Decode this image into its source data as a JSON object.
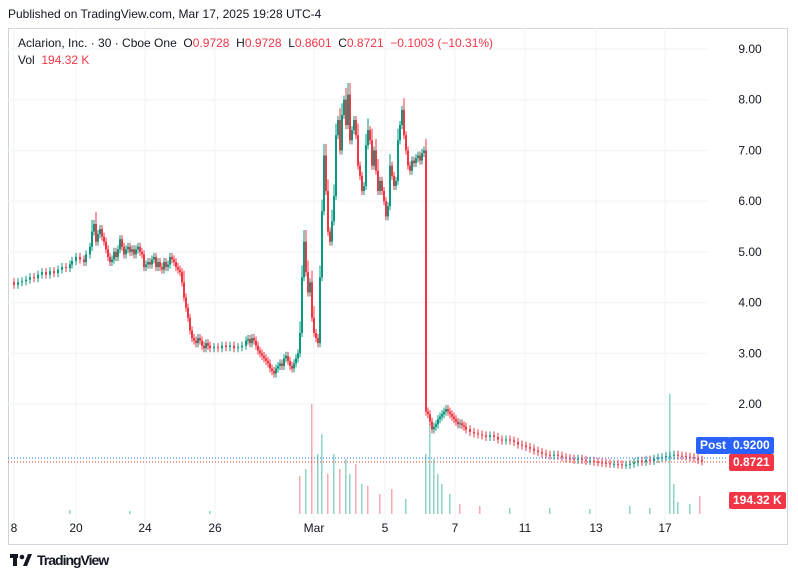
{
  "published": "Published on TradingView.com, Mar 17, 2025 19:28 UTC-4",
  "legend": {
    "name": "Aclarion, Inc. · 30 · Cboe One",
    "o_label": "O",
    "o": "0.9728",
    "h_label": "H",
    "h": "0.9728",
    "l_label": "L",
    "l": "0.8601",
    "c_label": "C",
    "c": "0.8721",
    "change": "−0.1003 (−10.31%)",
    "vol_label": "Vol",
    "vol": "194.32 K"
  },
  "tags": {
    "post_label": "Post",
    "post_price": "0.9200",
    "last_price": "0.8721",
    "volume": "194.32 K"
  },
  "colors": {
    "up": "#089981",
    "down": "#f23645",
    "post": "#2962ff",
    "text": "#131722",
    "grid": "#f0f3fa"
  },
  "footer": {
    "brand": "TradingView",
    "logo_icon": "tradingview-logo-icon"
  },
  "chart_data": {
    "type": "candlestick",
    "y_ticks": [
      "9.00",
      "8.00",
      "7.00",
      "6.00",
      "5.00",
      "4.00",
      "3.00",
      "2.00"
    ],
    "ylim": [
      0.0,
      9.4
    ],
    "x_ticks": [
      "8",
      "20",
      "24",
      "26",
      "Mar",
      "5",
      "7",
      "11",
      "13",
      "17"
    ],
    "grid": true,
    "series_name": "Aclarion, Inc.",
    "price_path": [
      [
        0,
        4.4
      ],
      [
        4,
        4.35
      ],
      [
        8,
        4.4
      ],
      [
        12,
        4.42
      ],
      [
        16,
        4.45
      ],
      [
        20,
        4.5
      ],
      [
        24,
        4.48
      ],
      [
        28,
        4.55
      ],
      [
        32,
        4.6
      ],
      [
        36,
        4.55
      ],
      [
        40,
        4.62
      ],
      [
        44,
        4.58
      ],
      [
        48,
        4.65
      ],
      [
        52,
        4.7
      ],
      [
        56,
        4.68
      ],
      [
        60,
        4.75
      ],
      [
        62,
        4.82
      ],
      [
        66,
        4.9
      ],
      [
        70,
        4.85
      ],
      [
        74,
        4.8
      ],
      [
        76,
        4.95
      ],
      [
        80,
        5.1
      ],
      [
        82,
        5.4
      ],
      [
        84,
        5.55
      ],
      [
        86,
        5.2
      ],
      [
        88,
        5.35
      ],
      [
        90,
        5.45
      ],
      [
        92,
        5.3
      ],
      [
        94,
        5.2
      ],
      [
        96,
        5.05
      ],
      [
        98,
        4.9
      ],
      [
        100,
        4.8
      ],
      [
        102,
        4.85
      ],
      [
        104,
        5.0
      ],
      [
        106,
        4.9
      ],
      [
        108,
        5.05
      ],
      [
        110,
        5.25
      ],
      [
        112,
        5.1
      ],
      [
        114,
        4.95
      ],
      [
        116,
        5.05
      ],
      [
        118,
        5.1
      ],
      [
        120,
        5.0
      ],
      [
        122,
        5.05
      ],
      [
        124,
        4.95
      ],
      [
        126,
        5.05
      ],
      [
        128,
        5.1
      ],
      [
        130,
        5.0
      ],
      [
        132,
        4.95
      ],
      [
        134,
        4.7
      ],
      [
        136,
        4.75
      ],
      [
        138,
        4.8
      ],
      [
        140,
        4.75
      ],
      [
        142,
        4.85
      ],
      [
        144,
        4.9
      ],
      [
        146,
        4.7
      ],
      [
        148,
        4.8
      ],
      [
        150,
        4.7
      ],
      [
        152,
        4.65
      ],
      [
        154,
        4.8
      ],
      [
        156,
        4.7
      ],
      [
        158,
        4.75
      ],
      [
        160,
        4.9
      ],
      [
        162,
        4.85
      ],
      [
        164,
        4.8
      ],
      [
        166,
        4.7
      ],
      [
        168,
        4.65
      ],
      [
        170,
        4.6
      ],
      [
        172,
        4.4
      ],
      [
        174,
        4.1
      ],
      [
        176,
        3.9
      ],
      [
        178,
        3.7
      ],
      [
        180,
        3.45
      ],
      [
        182,
        3.3
      ],
      [
        184,
        3.25
      ],
      [
        186,
        3.2
      ],
      [
        188,
        3.3
      ],
      [
        190,
        3.25
      ],
      [
        192,
        3.15
      ],
      [
        194,
        3.1
      ],
      [
        196,
        3.2
      ],
      [
        198,
        3.15
      ],
      [
        200,
        3.1
      ],
      [
        204,
        3.12
      ],
      [
        208,
        3.1
      ],
      [
        212,
        3.15
      ],
      [
        216,
        3.12
      ],
      [
        220,
        3.15
      ],
      [
        224,
        3.1
      ],
      [
        228,
        3.12
      ],
      [
        232,
        3.15
      ],
      [
        236,
        3.25
      ],
      [
        238,
        3.28
      ],
      [
        240,
        3.2
      ],
      [
        242,
        3.3
      ],
      [
        244,
        3.25
      ],
      [
        246,
        3.15
      ],
      [
        248,
        3.05
      ],
      [
        250,
        3.0
      ],
      [
        252,
        2.95
      ],
      [
        254,
        2.9
      ],
      [
        256,
        2.85
      ],
      [
        258,
        2.8
      ],
      [
        260,
        2.7
      ],
      [
        262,
        2.65
      ],
      [
        264,
        2.6
      ],
      [
        266,
        2.7
      ],
      [
        268,
        2.75
      ],
      [
        270,
        2.8
      ],
      [
        272,
        2.75
      ],
      [
        274,
        2.9
      ],
      [
        276,
        2.95
      ],
      [
        278,
        2.85
      ],
      [
        280,
        2.75
      ],
      [
        282,
        2.7
      ],
      [
        284,
        2.8
      ],
      [
        286,
        2.9
      ],
      [
        288,
        3.0
      ],
      [
        290,
        3.4
      ],
      [
        292,
        4.5
      ],
      [
        294,
        5.2
      ],
      [
        296,
        4.6
      ],
      [
        298,
        4.2
      ],
      [
        300,
        4.4
      ],
      [
        302,
        3.7
      ],
      [
        304,
        3.4
      ],
      [
        306,
        3.3
      ],
      [
        308,
        3.2
      ],
      [
        310,
        4.5
      ],
      [
        312,
        5.8
      ],
      [
        314,
        6.9
      ],
      [
        316,
        6.2
      ],
      [
        318,
        5.4
      ],
      [
        320,
        5.2
      ],
      [
        322,
        5.6
      ],
      [
        324,
        6.1
      ],
      [
        326,
        7.3
      ],
      [
        328,
        7.6
      ],
      [
        330,
        7.0
      ],
      [
        332,
        7.7
      ],
      [
        334,
        8.0
      ],
      [
        336,
        7.5
      ],
      [
        338,
        8.1
      ],
      [
        340,
        7.2
      ],
      [
        342,
        7.4
      ],
      [
        344,
        7.6
      ],
      [
        346,
        7.3
      ],
      [
        348,
        6.7
      ],
      [
        350,
        6.5
      ],
      [
        352,
        6.2
      ],
      [
        354,
        6.3
      ],
      [
        356,
        7.1
      ],
      [
        358,
        7.4
      ],
      [
        360,
        7.2
      ],
      [
        362,
        6.7
      ],
      [
        364,
        7.0
      ],
      [
        366,
        6.6
      ],
      [
        368,
        6.2
      ],
      [
        370,
        6.4
      ],
      [
        372,
        6.2
      ],
      [
        374,
        6.0
      ],
      [
        376,
        5.7
      ],
      [
        378,
        5.9
      ],
      [
        380,
        6.7
      ],
      [
        382,
        6.5
      ],
      [
        384,
        6.3
      ],
      [
        386,
        6.4
      ],
      [
        388,
        7.2
      ],
      [
        390,
        7.5
      ],
      [
        392,
        7.8
      ],
      [
        394,
        7.3
      ],
      [
        396,
        7.0
      ],
      [
        398,
        6.7
      ],
      [
        400,
        6.6
      ],
      [
        402,
        6.8
      ],
      [
        404,
        6.75
      ],
      [
        406,
        6.85
      ],
      [
        408,
        6.9
      ],
      [
        410,
        6.8
      ],
      [
        412,
        6.95
      ],
      [
        414,
        7.0
      ],
      [
        416,
        1.85
      ],
      [
        418,
        1.8
      ],
      [
        420,
        1.65
      ],
      [
        422,
        1.5
      ],
      [
        424,
        1.55
      ],
      [
        426,
        1.6
      ],
      [
        428,
        1.7
      ],
      [
        430,
        1.75
      ],
      [
        432,
        1.8
      ],
      [
        434,
        1.85
      ],
      [
        436,
        1.9
      ],
      [
        438,
        1.85
      ],
      [
        440,
        1.8
      ],
      [
        442,
        1.75
      ],
      [
        444,
        1.7
      ],
      [
        446,
        1.65
      ],
      [
        448,
        1.6
      ],
      [
        450,
        1.62
      ],
      [
        452,
        1.58
      ],
      [
        454,
        1.55
      ],
      [
        456,
        1.5
      ],
      [
        460,
        1.45
      ],
      [
        464,
        1.42
      ],
      [
        468,
        1.4
      ],
      [
        472,
        1.38
      ],
      [
        476,
        1.35
      ],
      [
        480,
        1.38
      ],
      [
        484,
        1.35
      ],
      [
        488,
        1.3
      ],
      [
        492,
        1.28
      ],
      [
        496,
        1.3
      ],
      [
        500,
        1.28
      ],
      [
        504,
        1.25
      ],
      [
        508,
        1.2
      ],
      [
        512,
        1.18
      ],
      [
        516,
        1.15
      ],
      [
        520,
        1.12
      ],
      [
        524,
        1.08
      ],
      [
        528,
        1.05
      ],
      [
        532,
        1.02
      ],
      [
        536,
        1.0
      ],
      [
        540,
        0.98
      ],
      [
        544,
        1.0
      ],
      [
        548,
        0.98
      ],
      [
        552,
        0.95
      ],
      [
        556,
        0.93
      ],
      [
        560,
        0.92
      ],
      [
        564,
        0.9
      ],
      [
        568,
        0.92
      ],
      [
        572,
        0.9
      ],
      [
        576,
        0.88
      ],
      [
        580,
        0.88
      ],
      [
        584,
        0.86
      ],
      [
        588,
        0.85
      ],
      [
        592,
        0.84
      ],
      [
        596,
        0.83
      ],
      [
        600,
        0.82
      ],
      [
        604,
        0.82
      ],
      [
        608,
        0.81
      ],
      [
        612,
        0.8
      ],
      [
        616,
        0.8
      ],
      [
        620,
        0.82
      ],
      [
        624,
        0.85
      ],
      [
        628,
        0.88
      ],
      [
        632,
        0.86
      ],
      [
        636,
        0.9
      ],
      [
        640,
        0.88
      ],
      [
        644,
        0.92
      ],
      [
        648,
        0.94
      ],
      [
        652,
        0.95
      ],
      [
        656,
        0.97
      ],
      [
        660,
        0.98
      ],
      [
        664,
        1.0
      ],
      [
        668,
        0.98
      ],
      [
        672,
        0.97
      ],
      [
        676,
        0.96
      ],
      [
        680,
        0.95
      ],
      [
        684,
        0.93
      ],
      [
        688,
        0.9
      ],
      [
        692,
        0.87
      ]
    ],
    "volume_spikes": [
      [
        60,
        4
      ],
      [
        120,
        3
      ],
      [
        200,
        3
      ],
      [
        290,
        38
      ],
      [
        296,
        45
      ],
      [
        302,
        110
      ],
      [
        308,
        60
      ],
      [
        312,
        80
      ],
      [
        318,
        40
      ],
      [
        324,
        60
      ],
      [
        330,
        45
      ],
      [
        336,
        55
      ],
      [
        340,
        40
      ],
      [
        346,
        50
      ],
      [
        352,
        30
      ],
      [
        358,
        28
      ],
      [
        370,
        20
      ],
      [
        382,
        25
      ],
      [
        396,
        15
      ],
      [
        416,
        60
      ],
      [
        420,
        90
      ],
      [
        424,
        55
      ],
      [
        428,
        40
      ],
      [
        432,
        30
      ],
      [
        440,
        20
      ],
      [
        450,
        10
      ],
      [
        470,
        8
      ],
      [
        500,
        6
      ],
      [
        540,
        6
      ],
      [
        580,
        5
      ],
      [
        620,
        8
      ],
      [
        640,
        6
      ],
      [
        660,
        120
      ],
      [
        664,
        30
      ],
      [
        668,
        12
      ],
      [
        680,
        10
      ],
      [
        690,
        18
      ]
    ]
  }
}
